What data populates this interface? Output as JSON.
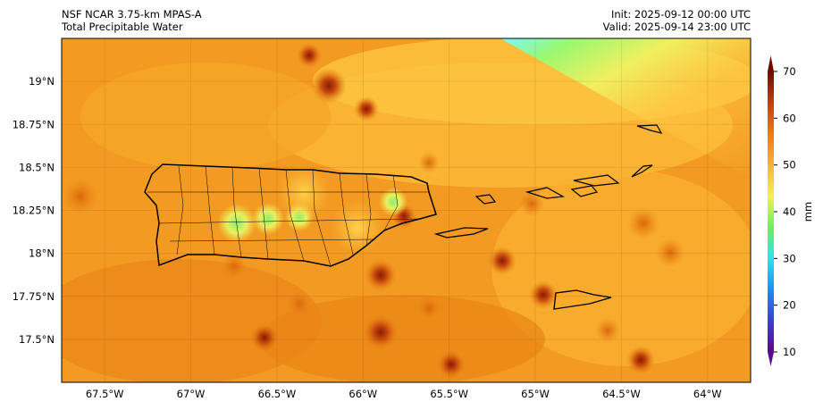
{
  "header": {
    "model": "NSF NCAR 3.75-km MPAS-A",
    "field": "Total Precipitable Water",
    "init": "Init: 2025-09-12 00:00 UTC",
    "valid": "Valid: 2025-09-14 23:00 UTC"
  },
  "chart_data": {
    "type": "heatmap",
    "title": "Total Precipitable Water",
    "lon_range": [
      -67.75,
      -63.75
    ],
    "lat_range": [
      17.25,
      19.25
    ],
    "x_ticks": [
      {
        "value": -67.5,
        "label": "67.5°W"
      },
      {
        "value": -67,
        "label": "67°W"
      },
      {
        "value": -66.5,
        "label": "66.5°W"
      },
      {
        "value": -66,
        "label": "66°W"
      },
      {
        "value": -65.5,
        "label": "65.5°W"
      },
      {
        "value": -65,
        "label": "65°W"
      },
      {
        "value": -64.5,
        "label": "64.5°W"
      },
      {
        "value": -64,
        "label": "64°W"
      }
    ],
    "y_ticks": [
      {
        "value": 19,
        "label": "19°N"
      },
      {
        "value": 18.75,
        "label": "18.75°N"
      },
      {
        "value": 18.5,
        "label": "18.5°N"
      },
      {
        "value": 18.25,
        "label": "18.25°N"
      },
      {
        "value": 18,
        "label": "18°N"
      },
      {
        "value": 17.75,
        "label": "17.75°N"
      },
      {
        "value": 17.5,
        "label": "17.5°N"
      }
    ],
    "colorbar": {
      "label": "mm",
      "range": [
        10,
        70
      ],
      "ticks": [
        10,
        20,
        30,
        40,
        50,
        60,
        70
      ],
      "tick_labels": [
        "10",
        "20",
        "30",
        "40",
        "50",
        "60",
        "70"
      ],
      "colors": [
        "#5a0a8c",
        "#3a3fd0",
        "#1a8ff0",
        "#30e0f0",
        "#6af060",
        "#f5f050",
        "#f9b23a",
        "#f07a10",
        "#c0400a",
        "#6e0c02"
      ]
    },
    "field_summary": {
      "typical_mm": 55,
      "min_mm_shown": 38,
      "max_mm_shown": 70
    }
  }
}
